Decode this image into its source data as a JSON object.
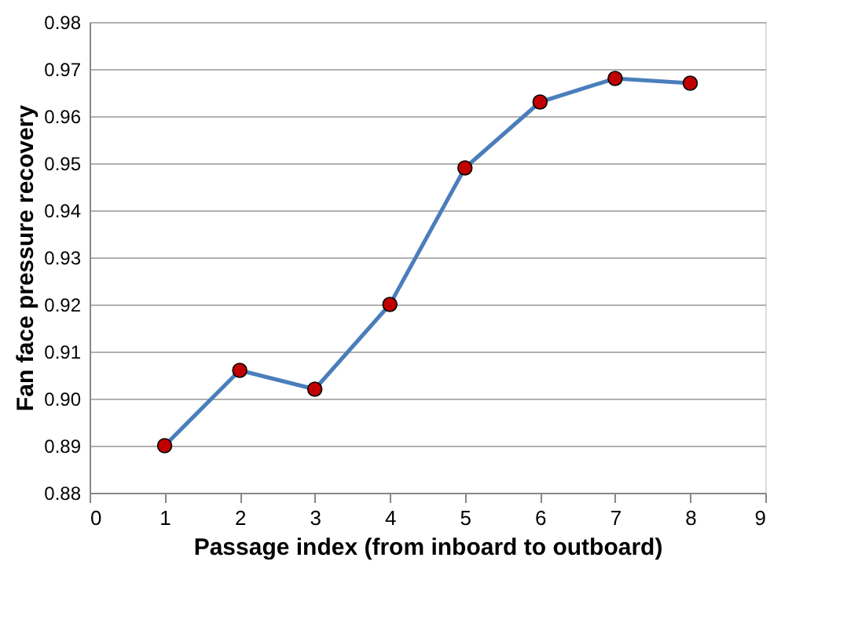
{
  "chart_data": {
    "type": "line",
    "xlabel": "Passage index (from inboard to outboard)",
    "ylabel": "Fan face pressure recovery",
    "x": [
      1,
      2,
      3,
      4,
      5,
      6,
      7,
      8
    ],
    "series": [
      {
        "color": "#4a7ebb",
        "values": [
          0.89,
          0.906,
          0.902,
          0.92,
          0.949,
          0.963,
          0.968,
          0.967
        ]
      }
    ],
    "marker": "circle",
    "line_style": "solid",
    "xlim": [
      0,
      9
    ],
    "xticks": [
      0,
      1,
      2,
      3,
      4,
      5,
      6,
      7,
      8,
      9
    ],
    "ylim": [
      0.88,
      0.98
    ],
    "yticks": [
      {
        "value": 0.88,
        "label": "0.88"
      },
      {
        "value": 0.89,
        "label": "0.89"
      },
      {
        "value": 0.9,
        "label": "0.90"
      },
      {
        "value": 0.91,
        "label": "0.91"
      },
      {
        "value": 0.92,
        "label": "0.92"
      },
      {
        "value": 0.93,
        "label": "0.93"
      },
      {
        "value": 0.94,
        "label": "0.94"
      },
      {
        "value": 0.95,
        "label": "0.95"
      },
      {
        "value": 0.96,
        "label": "0.96"
      },
      {
        "value": 0.97,
        "label": "0.97"
      },
      {
        "value": 0.98,
        "label": "0.98"
      }
    ],
    "grid": "y"
  }
}
